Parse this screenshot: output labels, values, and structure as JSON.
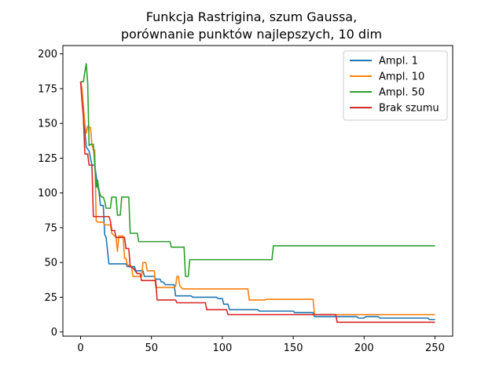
{
  "chart_data": {
    "type": "line",
    "title_lines": [
      "Funkcja Rastrigina, szum Gaussa,",
      "porównanie punktów najlepszych, 10 dim"
    ],
    "xlabel": "",
    "ylabel": "",
    "xlim": [
      -12.5,
      262.5
    ],
    "ylim": [
      -3,
      206
    ],
    "xticks": [
      0,
      50,
      100,
      150,
      200,
      250
    ],
    "yticks": [
      0,
      25,
      50,
      75,
      100,
      125,
      150,
      175,
      200
    ],
    "grid": false,
    "legend_position": "top-right",
    "series": [
      {
        "name": "Ampl. 1",
        "color": "#1f77b4",
        "points": [
          [
            0,
            180
          ],
          [
            1,
            173
          ],
          [
            2,
            160
          ],
          [
            3,
            145
          ],
          [
            4,
            133
          ],
          [
            6,
            130
          ],
          [
            8,
            120
          ],
          [
            10,
            120
          ],
          [
            12,
            105
          ],
          [
            13,
            101
          ],
          [
            14,
            91
          ],
          [
            16,
            91
          ],
          [
            17,
            70
          ],
          [
            18,
            68
          ],
          [
            20,
            49
          ],
          [
            32,
            49
          ],
          [
            33,
            47
          ],
          [
            38,
            47
          ],
          [
            39,
            44
          ],
          [
            44,
            44
          ],
          [
            45,
            40
          ],
          [
            52,
            40
          ],
          [
            53,
            38
          ],
          [
            56,
            38
          ],
          [
            57,
            36
          ],
          [
            58,
            36
          ],
          [
            60,
            34
          ],
          [
            66,
            34
          ],
          [
            67,
            26
          ],
          [
            78,
            26
          ],
          [
            79,
            25
          ],
          [
            96,
            25
          ],
          [
            97,
            24
          ],
          [
            100,
            24
          ],
          [
            101,
            20
          ],
          [
            104,
            20
          ],
          [
            105,
            16
          ],
          [
            125,
            16
          ],
          [
            126,
            15
          ],
          [
            150,
            15
          ],
          [
            151,
            14
          ],
          [
            164,
            14
          ],
          [
            165,
            11
          ],
          [
            195,
            11
          ],
          [
            196,
            10
          ],
          [
            200,
            10
          ],
          [
            201,
            11
          ],
          [
            210,
            11
          ],
          [
            211,
            10
          ],
          [
            245,
            10
          ],
          [
            246,
            9
          ],
          [
            250,
            9
          ]
        ]
      },
      {
        "name": "Ampl. 10",
        "color": "#ff7f0e",
        "points": [
          [
            0,
            180
          ],
          [
            1,
            175
          ],
          [
            2,
            162
          ],
          [
            3,
            150
          ],
          [
            4,
            143
          ],
          [
            5,
            148
          ],
          [
            7,
            147
          ],
          [
            8,
            135
          ],
          [
            9,
            131
          ],
          [
            10,
            131
          ],
          [
            11,
            80
          ],
          [
            12,
            79
          ],
          [
            16,
            79
          ],
          [
            17,
            77
          ],
          [
            21,
            77
          ],
          [
            22,
            71
          ],
          [
            25,
            68
          ],
          [
            26,
            58
          ],
          [
            27,
            69
          ],
          [
            30,
            69
          ],
          [
            31,
            53
          ],
          [
            32,
            53
          ],
          [
            33,
            48
          ],
          [
            35,
            48
          ],
          [
            36,
            46
          ],
          [
            37,
            40
          ],
          [
            43,
            40
          ],
          [
            44,
            50
          ],
          [
            46,
            50
          ],
          [
            47,
            44
          ],
          [
            52,
            44
          ],
          [
            53,
            32
          ],
          [
            66,
            32
          ],
          [
            67,
            33
          ],
          [
            68,
            40
          ],
          [
            69,
            40
          ],
          [
            70,
            33
          ],
          [
            72,
            31
          ],
          [
            118,
            31
          ],
          [
            119,
            23
          ],
          [
            130,
            23
          ],
          [
            131,
            23.5
          ],
          [
            164,
            23.5
          ],
          [
            165,
            12.5
          ],
          [
            250,
            12.5
          ]
        ]
      },
      {
        "name": "Ampl. 50",
        "color": "#2ca02c",
        "points": [
          [
            0,
            180
          ],
          [
            1,
            180
          ],
          [
            2,
            180
          ],
          [
            3,
            187
          ],
          [
            4,
            193
          ],
          [
            5,
            179
          ],
          [
            6,
            134
          ],
          [
            7,
            135
          ],
          [
            9,
            135
          ],
          [
            10,
            120
          ],
          [
            11,
            104
          ],
          [
            12,
            109
          ],
          [
            13,
            102
          ],
          [
            14,
            98
          ],
          [
            15,
            97
          ],
          [
            16,
            97
          ],
          [
            17,
            94
          ],
          [
            18,
            89
          ],
          [
            21,
            89
          ],
          [
            22,
            97
          ],
          [
            25,
            97
          ],
          [
            26,
            84
          ],
          [
            28,
            84
          ],
          [
            29,
            97
          ],
          [
            34,
            97
          ],
          [
            35,
            71
          ],
          [
            40,
            71
          ],
          [
            41,
            65
          ],
          [
            63,
            65
          ],
          [
            64,
            61
          ],
          [
            73,
            61
          ],
          [
            74,
            40
          ],
          [
            76,
            40
          ],
          [
            77,
            52
          ],
          [
            135,
            52
          ],
          [
            136,
            62
          ],
          [
            250,
            62
          ]
        ]
      },
      {
        "name": "Brak szumu",
        "color": "#d62728",
        "points": [
          [
            0,
            180
          ],
          [
            1,
            166
          ],
          [
            2,
            154
          ],
          [
            3,
            128
          ],
          [
            5,
            128
          ],
          [
            6,
            120
          ],
          [
            8,
            120
          ],
          [
            9,
            83
          ],
          [
            20,
            83
          ],
          [
            21,
            80
          ],
          [
            22,
            73
          ],
          [
            24,
            73
          ],
          [
            25,
            68
          ],
          [
            31,
            68
          ],
          [
            32,
            60
          ],
          [
            34,
            60
          ],
          [
            35,
            47
          ],
          [
            37,
            46
          ],
          [
            40,
            42
          ],
          [
            42,
            42
          ],
          [
            43,
            37
          ],
          [
            53,
            37
          ],
          [
            54,
            23
          ],
          [
            67,
            23
          ],
          [
            68,
            21
          ],
          [
            88,
            21
          ],
          [
            89,
            16
          ],
          [
            103,
            16
          ],
          [
            104,
            12.5
          ],
          [
            180,
            12.5
          ],
          [
            181,
            7
          ],
          [
            250,
            7
          ]
        ]
      }
    ]
  }
}
